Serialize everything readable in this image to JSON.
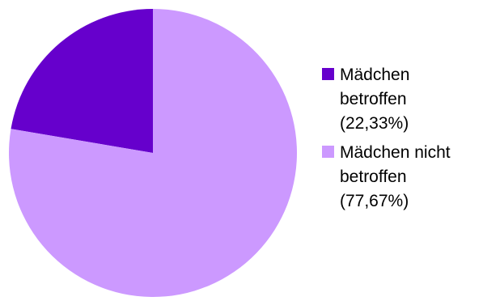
{
  "chart_data": {
    "type": "pie",
    "title": "",
    "start_angle_deg": 0,
    "direction": "counterclockwise",
    "legend_position": "right",
    "slices": [
      {
        "label_lines": [
          "Mädchen",
          "betroffen",
          "(22,33%)"
        ],
        "value": 22.33,
        "color": "#6600cc"
      },
      {
        "label_lines": [
          "Mädchen nicht",
          "betroffen",
          "(77,67%)"
        ],
        "value": 77.67,
        "color": "#cc99ff"
      }
    ]
  }
}
